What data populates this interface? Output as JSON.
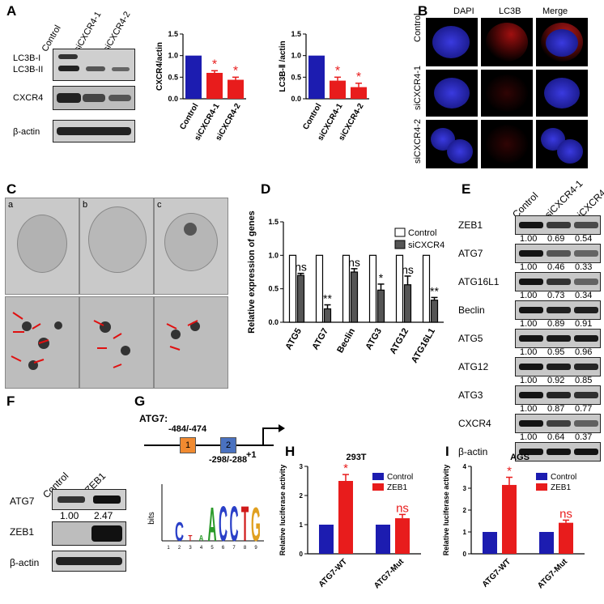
{
  "panels": {
    "A": "A",
    "B": "B",
    "C": "C",
    "D": "D",
    "E": "E",
    "F": "F",
    "G": "G",
    "H": "H",
    "I": "I"
  },
  "panel_a": {
    "lanes": [
      "Control",
      "siCXCR4-1",
      "siCXCR4-2"
    ],
    "row_labels": [
      "LC3B-I",
      "LC3B-II",
      "CXCR4",
      "β-actin"
    ]
  },
  "panel_b": {
    "columns": [
      "DAPI",
      "LC3B",
      "Merge"
    ],
    "rows": [
      "Control",
      "siCXCR4-1",
      "siCXCR4-2"
    ]
  },
  "panel_c": {
    "labels": [
      "a",
      "b",
      "c"
    ]
  },
  "panel_e": {
    "lanes": [
      "Control",
      "siCXCR4-1",
      "siCXCR4-2"
    ],
    "rows": [
      {
        "name": "ZEB1",
        "values": [
          "1.00",
          "0.69",
          "0.54"
        ]
      },
      {
        "name": "ATG7",
        "values": [
          "1.00",
          "0.46",
          "0.33"
        ]
      },
      {
        "name": "ATG16L1",
        "values": [
          "1.00",
          "0.73",
          "0.34"
        ]
      },
      {
        "name": "Beclin",
        "values": [
          "1.00",
          "0.89",
          "0.91"
        ]
      },
      {
        "name": "ATG5",
        "values": [
          "1.00",
          "0.95",
          "0.96"
        ]
      },
      {
        "name": "ATG12",
        "values": [
          "1.00",
          "0.92",
          "0.85"
        ]
      },
      {
        "name": "ATG3",
        "values": [
          "1.00",
          "0.87",
          "0.77"
        ]
      },
      {
        "name": "CXCR4",
        "values": [
          "1.00",
          "0.64",
          "0.37"
        ]
      },
      {
        "name": "β-actin",
        "values": []
      }
    ]
  },
  "panel_f": {
    "lanes": [
      "Control",
      "ZEB1"
    ],
    "rows": [
      "ATG7",
      "ZEB1",
      "β-actin"
    ],
    "atg7_values": [
      "1.00",
      "2.47"
    ]
  },
  "panel_g": {
    "gene": "ATG7:",
    "site1": "-484/-474",
    "site2": "-298/-288",
    "tss": "+1",
    "box1": "1",
    "box2": "2",
    "logo_ylabel": "bits",
    "logo_letters": [
      "C",
      "A",
      "C",
      "C",
      "T",
      "G"
    ],
    "logo_positions": [
      "1",
      "2",
      "3",
      "4",
      "5",
      "6",
      "7",
      "8",
      "9"
    ]
  },
  "chart_data": [
    {
      "id": "A-CXCR4",
      "type": "bar",
      "categories": [
        "Control",
        "siCXCR4-1",
        "siCXCR4-2"
      ],
      "values": [
        1.0,
        0.6,
        0.44
      ],
      "errors": [
        0,
        0.05,
        0.06
      ],
      "colors": [
        "#1c1cb0",
        "#e81c1c",
        "#e81c1c"
      ],
      "sig": [
        "",
        "*",
        "*"
      ],
      "ylabel": "CXCR4/actin",
      "ylim": [
        0,
        1.5
      ],
      "yticks": [
        "0.0",
        "0.5",
        "1.0",
        "1.5"
      ]
    },
    {
      "id": "A-LC3B",
      "type": "bar",
      "categories": [
        "Control",
        "siCXCR4-1",
        "siCXCR4-2"
      ],
      "values": [
        1.0,
        0.42,
        0.27
      ],
      "errors": [
        0,
        0.08,
        0.09
      ],
      "colors": [
        "#1c1cb0",
        "#e81c1c",
        "#e81c1c"
      ],
      "sig": [
        "",
        "*",
        "*"
      ],
      "ylabel": "LC3B-Ⅱ /actin",
      "ylim": [
        0,
        1.5
      ],
      "yticks": [
        "0.0",
        "0.5",
        "1.0",
        "1.5"
      ]
    },
    {
      "id": "D",
      "type": "bar",
      "categories": [
        "ATG5",
        "ATG7",
        "Beclin",
        "ATG3",
        "ATG12",
        "ATG16L1"
      ],
      "series": [
        {
          "name": "Control",
          "values": [
            1,
            1,
            1,
            1,
            1,
            1
          ],
          "errors": [
            0,
            0,
            0,
            0,
            0,
            0
          ],
          "color": "#ffffff"
        },
        {
          "name": "siCXCR4",
          "values": [
            0.7,
            0.2,
            0.75,
            0.48,
            0.56,
            0.33
          ],
          "errors": [
            0.03,
            0.06,
            0.05,
            0.09,
            0.13,
            0.04
          ],
          "color": "#555555"
        }
      ],
      "sig": [
        "ns",
        "**",
        "ns",
        "*",
        "ns",
        "**"
      ],
      "ylabel": "Relative expression of genes",
      "ylim": [
        0,
        1.5
      ],
      "yticks": [
        "0.0",
        "0.5",
        "1.0",
        "1.5"
      ]
    },
    {
      "id": "H",
      "type": "bar",
      "title": "293T",
      "categories": [
        "ATG7-WT",
        "ATG7-Mut"
      ],
      "series": [
        {
          "name": "Control",
          "values": [
            1,
            1
          ],
          "errors": [
            0,
            0
          ],
          "color": "#1c1cb0"
        },
        {
          "name": "ZEB1",
          "values": [
            2.5,
            1.22
          ],
          "errors": [
            0.22,
            0.13
          ],
          "color": "#e81c1c"
        }
      ],
      "sig": [
        "*",
        "ns"
      ],
      "ylabel": "Relative luciferase activity",
      "ylim": [
        0,
        3
      ],
      "yticks": [
        "0",
        "1",
        "2",
        "3"
      ]
    },
    {
      "id": "I",
      "type": "bar",
      "title": "AGS",
      "categories": [
        "ATG7-WT",
        "ATG7-Mut"
      ],
      "series": [
        {
          "name": "Control",
          "values": [
            1,
            1
          ],
          "errors": [
            0,
            0
          ],
          "color": "#1c1cb0"
        },
        {
          "name": "ZEB1",
          "values": [
            3.15,
            1.42
          ],
          "errors": [
            0.35,
            0.12
          ],
          "color": "#e81c1c"
        }
      ],
      "sig": [
        "*",
        "ns"
      ],
      "ylabel": "Relative luciferase activity",
      "ylim": [
        0,
        4
      ],
      "yticks": [
        "0",
        "1",
        "2",
        "3",
        "4"
      ]
    }
  ]
}
